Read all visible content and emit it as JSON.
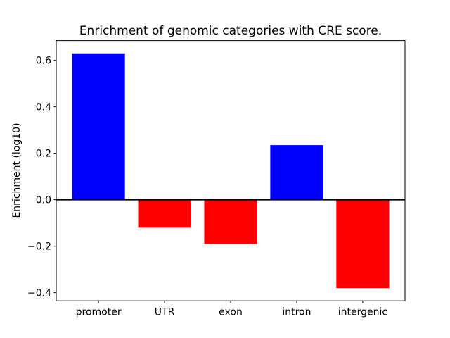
{
  "chart_data": {
    "type": "bar",
    "title": "Enrichment of genomic categories with CRE score.",
    "xlabel": "",
    "ylabel": "Enrichment (log10)",
    "categories": [
      "promoter",
      "UTR",
      "exon",
      "intron",
      "intergenic"
    ],
    "values": [
      0.63,
      -0.12,
      -0.19,
      0.235,
      -0.38
    ],
    "bar_colors": [
      "#0000ff",
      "#ff0000",
      "#ff0000",
      "#0000ff",
      "#ff0000"
    ],
    "positive_color": "#0000ff",
    "negative_color": "#ff0000",
    "ylim": [
      -0.435,
      0.685
    ],
    "yticks": [
      0.6,
      0.4,
      0.2,
      0.0,
      -0.2,
      -0.4
    ],
    "ytick_labels": [
      "0.6",
      "0.4",
      "0.2",
      "0.0",
      "−0.2",
      "−0.4"
    ],
    "bar_width_fraction": 0.8,
    "zero_line": true,
    "grid": false,
    "legend": null,
    "spine_color": "#000000",
    "background_color": "#ffffff"
  }
}
